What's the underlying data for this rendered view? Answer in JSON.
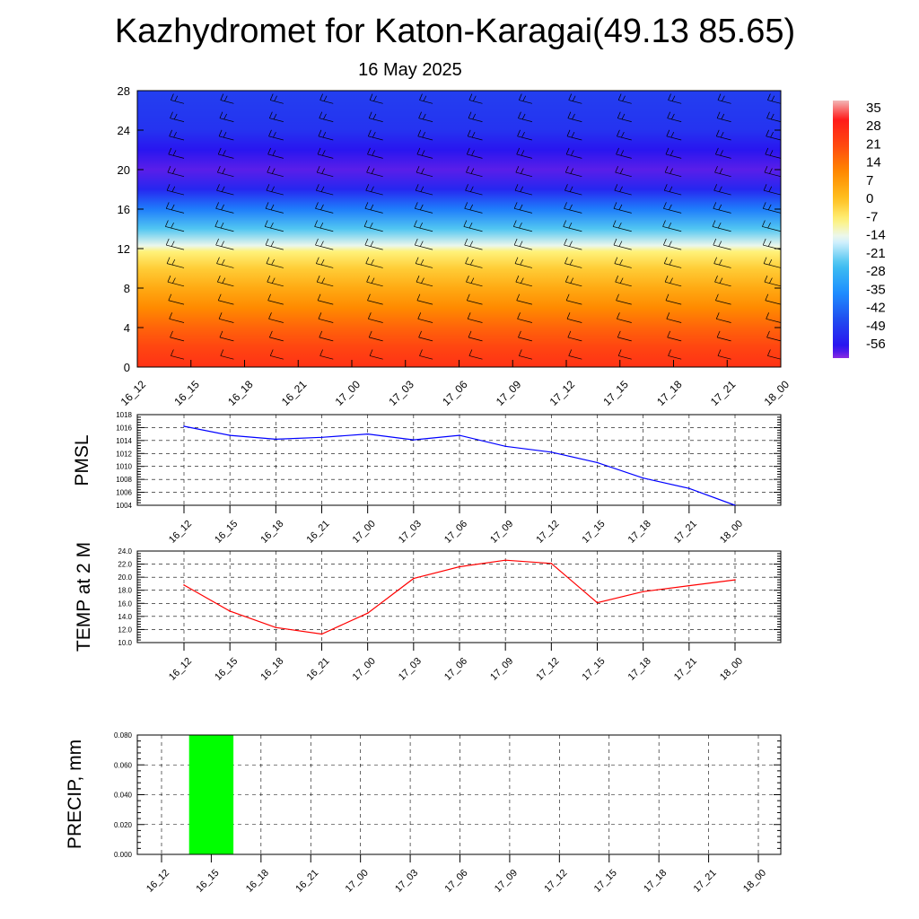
{
  "title": "Kazhydromet for Katon-Karagai(49.13 85.65)",
  "subtitle": "16 May 2025",
  "chart_data": [
    {
      "type": "heatmap",
      "x_ticks": [
        "16_12",
        "16_15",
        "16_18",
        "16_21",
        "17_00",
        "17_03",
        "17_06",
        "17_09",
        "17_12",
        "17_15",
        "17_18",
        "17_21",
        "18_00"
      ],
      "y_ticks": [
        "0",
        "4",
        "8",
        "12",
        "16",
        "20",
        "24",
        "28"
      ],
      "ylim": [
        0,
        28
      ],
      "colorbar_ticks": [
        "35",
        "28",
        "21",
        "14",
        "7",
        "0",
        "-7",
        "-14",
        "-21",
        "-28",
        "-35",
        "-42",
        "-49",
        "-56"
      ],
      "colorbar_range": [
        -60,
        37
      ],
      "profile": [
        {
          "level": 0,
          "value": 25
        },
        {
          "level": 2,
          "value": 21
        },
        {
          "level": 4,
          "value": 16
        },
        {
          "level": 6,
          "value": 10
        },
        {
          "level": 8,
          "value": 4
        },
        {
          "level": 10,
          "value": -2
        },
        {
          "level": 11.7,
          "value": -8
        },
        {
          "level": 12.3,
          "value": -14
        },
        {
          "level": 14,
          "value": -24
        },
        {
          "level": 16,
          "value": -38
        },
        {
          "level": 18,
          "value": -52
        },
        {
          "level": 20,
          "value": -58
        },
        {
          "level": 22,
          "value": -55
        },
        {
          "level": 24,
          "value": -50
        },
        {
          "level": 28,
          "value": -48
        }
      ],
      "colors": {
        "c-60": "#8a2be2",
        "c-56": "#2a10f0",
        "c-45": "#2050f0",
        "c-35": "#1e90ff",
        "c-25": "#40c0f0",
        "c-15": "#e8f8ff",
        "c-8": "#fff27a",
        "c0": "#ffc020",
        "c10": "#ff8a00",
        "c20": "#ff4a10",
        "c30": "#ff1a1a",
        "c37": "#f2b8b8"
      }
    },
    {
      "type": "line",
      "ylabel": "PMSL",
      "x": [
        "16_12",
        "16_15",
        "16_18",
        "16_21",
        "17_00",
        "17_03",
        "17_06",
        "17_09",
        "17_12",
        "17_15",
        "17_18",
        "17_21",
        "18_00"
      ],
      "values": [
        1016.2,
        1014.8,
        1014.2,
        1014.5,
        1015.0,
        1014.1,
        1014.8,
        1013.1,
        1012.2,
        1010.6,
        1008.2,
        1006.6,
        1004.0
      ],
      "ylim": [
        1004,
        1018
      ],
      "y_ticks": [
        "1004",
        "1006",
        "1008",
        "1010",
        "1012",
        "1014",
        "1016",
        "1018"
      ],
      "color": "#0000ff"
    },
    {
      "type": "line",
      "ylabel": "TEMP at 2 M",
      "x": [
        "16_12",
        "16_15",
        "16_18",
        "16_21",
        "17_00",
        "17_03",
        "17_06",
        "17_09",
        "17_12",
        "17_15",
        "17_18",
        "17_21",
        "18_00"
      ],
      "values": [
        18.8,
        14.8,
        12.3,
        11.3,
        14.5,
        19.8,
        21.6,
        22.6,
        22.1,
        16.1,
        17.8,
        18.7,
        19.6
      ],
      "ylim": [
        10,
        24
      ],
      "y_ticks": [
        "10.0",
        "12.0",
        "14.0",
        "16.0",
        "18.0",
        "20.0",
        "22.0",
        "24.0"
      ],
      "color": "#ff0000"
    },
    {
      "type": "bar",
      "ylabel": "PRECIP, mm",
      "x": [
        "16_12",
        "16_15",
        "16_18",
        "16_21",
        "17_00",
        "17_03",
        "17_06",
        "17_09",
        "17_12",
        "17_15",
        "17_18",
        "17_21",
        "18_00"
      ],
      "values": [
        0,
        0.08,
        0,
        0,
        0,
        0,
        0,
        0,
        0,
        0,
        0,
        0,
        0
      ],
      "ylim": [
        0,
        0.08
      ],
      "y_ticks": [
        "0.000",
        "0.020",
        "0.040",
        "0.060",
        "0.080"
      ],
      "color": "#00ff00"
    }
  ]
}
